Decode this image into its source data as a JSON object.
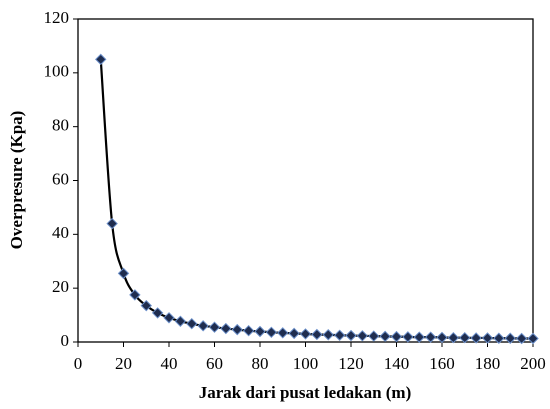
{
  "chart_data": {
    "type": "scatter",
    "x_label": "Jarak dari pusat ledakan (m)",
    "y_label": "Overpresure (Kpa)",
    "x": [
      10,
      15,
      20,
      25,
      30,
      35,
      40,
      45,
      50,
      55,
      60,
      65,
      70,
      75,
      80,
      85,
      90,
      95,
      100,
      105,
      110,
      115,
      120,
      125,
      130,
      135,
      140,
      145,
      150,
      155,
      160,
      165,
      170,
      175,
      180,
      185,
      190,
      195,
      200
    ],
    "series": [
      {
        "color": "#1f2d4f",
        "line_color": "#000000",
        "values": [
          105,
          44,
          25.5,
          17.5,
          13.5,
          10.8,
          9,
          7.7,
          6.8,
          6,
          5.5,
          5,
          4.6,
          4.2,
          3.9,
          3.6,
          3.4,
          3.2,
          3,
          2.8,
          2.7,
          2.5,
          2.4,
          2.3,
          2.2,
          2.1,
          2,
          1.9,
          1.8,
          1.8,
          1.7,
          1.6,
          1.6,
          1.5,
          1.5,
          1.4,
          1.4,
          1.3,
          1.3
        ]
      }
    ],
    "xlim": [
      0,
      200
    ],
    "xticks": [
      0,
      20,
      40,
      60,
      80,
      100,
      120,
      140,
      160,
      180,
      200
    ],
    "ylim": [
      0,
      120
    ],
    "yticks": [
      0,
      20,
      40,
      60,
      80,
      100,
      120
    ]
  }
}
